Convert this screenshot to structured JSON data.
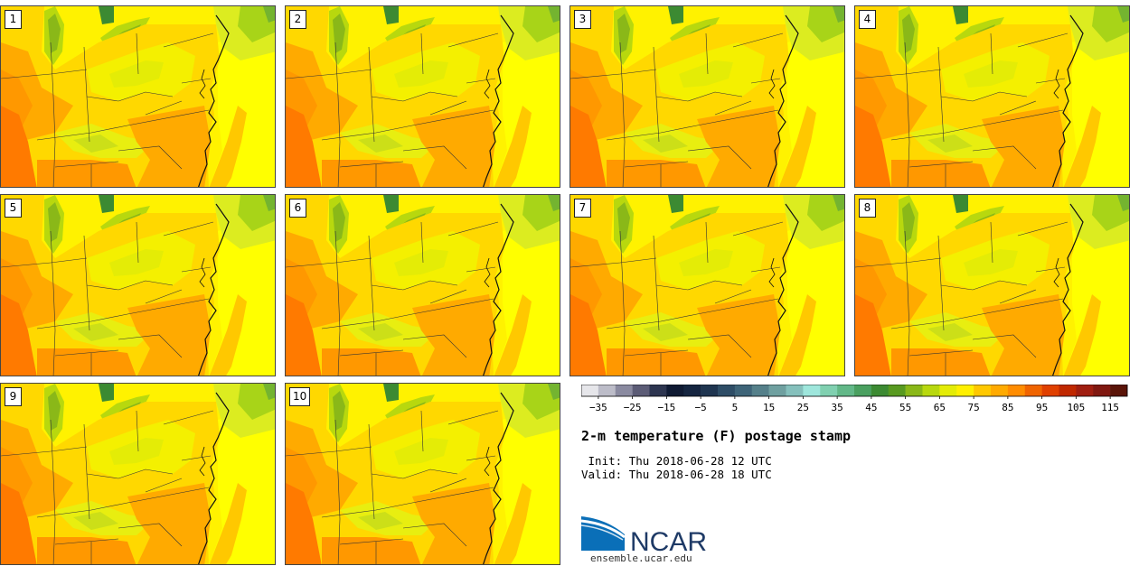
{
  "panels": [
    {
      "label": "1"
    },
    {
      "label": "2"
    },
    {
      "label": "3"
    },
    {
      "label": "4"
    },
    {
      "label": "5"
    },
    {
      "label": "6"
    },
    {
      "label": "7"
    },
    {
      "label": "8"
    },
    {
      "label": "9"
    },
    {
      "label": "10"
    }
  ],
  "colorbar": {
    "colors": [
      "#e6e6ea",
      "#bcbcc8",
      "#8a8aa0",
      "#5c5c76",
      "#2d3550",
      "#0f1a33",
      "#152540",
      "#1f3550",
      "#2e4d66",
      "#3e6478",
      "#55808a",
      "#6fa0a0",
      "#85c0bc",
      "#9ee6dc",
      "#80d0b0",
      "#62b888",
      "#4aa060",
      "#3c8a32",
      "#589a20",
      "#8ab818",
      "#b8d80e",
      "#e4ec06",
      "#fff000",
      "#ffc800",
      "#ffaa00",
      "#ff8c00",
      "#f06400",
      "#e04000",
      "#c02800",
      "#a01e10",
      "#801810",
      "#5a1408"
    ],
    "tick_labels": [
      "−35",
      "−25",
      "−15",
      "−5",
      "5",
      "15",
      "25",
      "35",
      "45",
      "55",
      "65",
      "75",
      "85",
      "95",
      "105",
      "115"
    ],
    "min": -40,
    "max": 120,
    "step": 5
  },
  "title": "2-m temperature (F) postage stamp",
  "init": " Init: Thu 2018-06-28 12 UTC",
  "valid": "Valid: Thu 2018-06-28 18 UTC",
  "logo": {
    "text": "NCAR",
    "blue": "#0a6fb8",
    "navy": "#1e3a66"
  },
  "site": "ensemble.ucar.edu"
}
